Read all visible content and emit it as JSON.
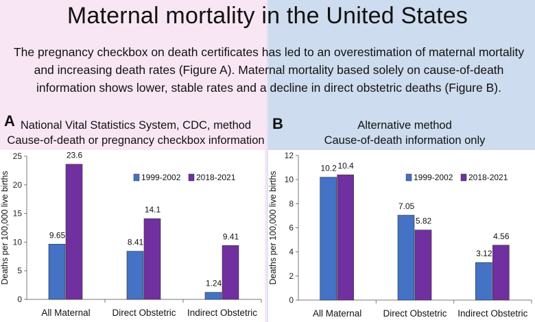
{
  "page": {
    "title": "Maternal mortality in the United States",
    "subtitle": "The pregnancy checkbox on death certificates has led to an overestimation of maternal mortality and increasing death rates (Figure A). Maternal mortality based solely on cause-of-death information shows lower, stable rates and a decline in direct obstetric deaths (Figure B)."
  },
  "panels": [
    {
      "letter": "A",
      "caption_line1": "National Vital Statistics System, CDC, method",
      "caption_line2": "Cause-of-death or pregnancy checkbox information"
    },
    {
      "letter": "B",
      "caption_line1": "Alternative method",
      "caption_line2": "Cause-of-death information only"
    }
  ],
  "colors": {
    "series1": "#4472c4",
    "series2": "#7030a0"
  },
  "chart_data": [
    {
      "type": "bar",
      "categories": [
        "All Maternal",
        "Direct Obstetric",
        "Indirect Obstetric"
      ],
      "series": [
        {
          "name": "1999-2002",
          "values": [
            9.65,
            8.41,
            1.24
          ],
          "labels": [
            "9.65",
            "8.41",
            "1.24"
          ]
        },
        {
          "name": "2018-2021",
          "values": [
            23.6,
            14.1,
            9.41
          ],
          "labels": [
            "23.6",
            "14.1",
            "9.41"
          ]
        }
      ],
      "ylabel": "Deaths per 100,000 live births",
      "ylim": [
        0,
        25
      ],
      "yticks": [
        0,
        5,
        10,
        15,
        20,
        25
      ],
      "grid": false,
      "legend": "top-right"
    },
    {
      "type": "bar",
      "categories": [
        "All Maternal",
        "Direct Obstetric",
        "Indirect Obstetric"
      ],
      "series": [
        {
          "name": "1999-2002",
          "values": [
            10.2,
            7.05,
            3.12
          ],
          "labels": [
            "10.2",
            "7.05",
            "3.12"
          ]
        },
        {
          "name": "2018-2021",
          "values": [
            10.4,
            5.82,
            4.56
          ],
          "labels": [
            "10.4",
            "5.82",
            "4.56"
          ]
        }
      ],
      "ylabel": "Deaths per 100,000 live births",
      "ylim": [
        0,
        12
      ],
      "yticks": [
        0,
        2,
        4,
        6,
        8,
        10,
        12
      ],
      "grid": false,
      "legend": "top-right"
    }
  ]
}
